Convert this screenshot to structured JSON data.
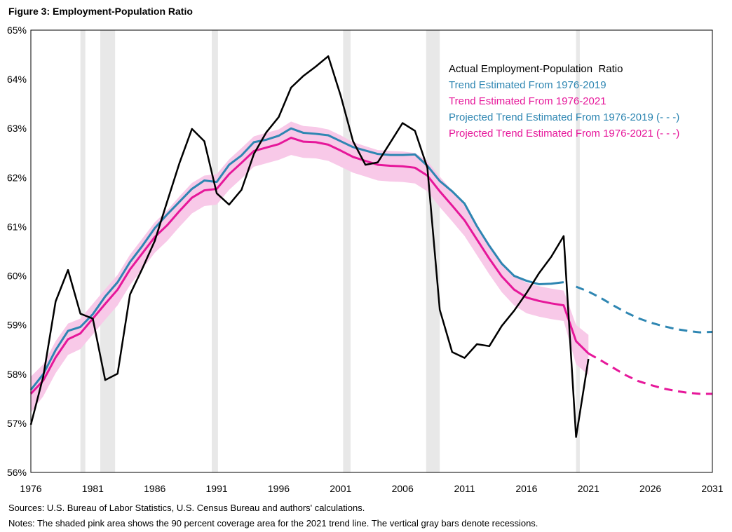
{
  "figure_title": "Figure 3: Employment-Population Ratio",
  "sources": "Sources: U.S. Bureau of Labor Statistics, U.S. Census Bureau and authors' calculations.",
  "notes": "Notes: The shaded pink area shows the 90 percent coverage area for the 2021  trend line. The vertical gray bars denote recessions.",
  "colors": {
    "actual": "#000000",
    "trend2019": "#2e86b2",
    "trend2021": "#e6179a",
    "band": "#f8c9e8",
    "recession": "#e8e8e8"
  },
  "chart_data": {
    "type": "line",
    "title": "Employment-Population Ratio",
    "xlabel": "",
    "ylabel": "",
    "xlim": [
      1976,
      2031
    ],
    "ylim": [
      56,
      65
    ],
    "x_ticks": [
      "1976",
      "1981",
      "1986",
      "1991",
      "1996",
      "2001",
      "2006",
      "2011",
      "2016",
      "2021",
      "2026",
      "2031"
    ],
    "y_ticks": [
      "56%",
      "57%",
      "58%",
      "59%",
      "60%",
      "61%",
      "62%",
      "63%",
      "64%",
      "65%"
    ],
    "legend_position": "top-right",
    "legend": [
      {
        "label": "Actual Employment-Population  Ratio",
        "color": "#000000"
      },
      {
        "label": "Trend Estimated From 1976-2019",
        "color": "#2e86b2"
      },
      {
        "label": "Trend Estimated From 1976-2021",
        "color": "#e6179a"
      },
      {
        "label": "Projected Trend Estimated From 1976-2019 (- - -)",
        "color": "#2e86b2"
      },
      {
        "label": "Projected Trend Estimated From 1976-2021 (- - -)",
        "color": "#e6179a"
      }
    ],
    "recessions": [
      [
        1980.0,
        1980.4
      ],
      [
        1981.6,
        1982.8
      ],
      [
        1990.6,
        1991.1
      ],
      [
        2001.2,
        2001.8
      ],
      [
        2007.9,
        2009.0
      ],
      [
        2020.0,
        2020.3
      ]
    ],
    "series": [
      {
        "key": "actual",
        "style": "solid",
        "x": [
          1976,
          1977,
          1978,
          1979,
          1980,
          1981,
          1982,
          1983,
          1984,
          1985,
          1986,
          1987,
          1988,
          1989,
          1990,
          1991,
          1992,
          1993,
          1994,
          1995,
          1996,
          1997,
          1998,
          1999,
          2000,
          2001,
          2002,
          2003,
          2004,
          2005,
          2006,
          2007,
          2008,
          2009,
          2010,
          2011,
          2012,
          2013,
          2014,
          2015,
          2016,
          2017,
          2018,
          2019,
          2020,
          2021
        ],
        "values": [
          56.97,
          57.95,
          59.48,
          60.12,
          59.23,
          59.13,
          57.88,
          58.01,
          59.62,
          60.15,
          60.71,
          61.51,
          62.3,
          62.99,
          62.74,
          61.68,
          61.45,
          61.75,
          62.48,
          62.92,
          63.23,
          63.83,
          64.07,
          64.26,
          64.47,
          63.67,
          62.74,
          62.26,
          62.31,
          62.71,
          63.11,
          62.95,
          62.2,
          59.31,
          58.45,
          58.33,
          58.61,
          58.57,
          58.98,
          59.29,
          59.65,
          60.05,
          60.39,
          60.81,
          56.72,
          58.31
        ]
      },
      {
        "name": "Trend Estimated From 1976-2019",
        "key": "trend2019",
        "style": "solid",
        "x": [
          1976,
          1977,
          1978,
          1979,
          1980,
          1981,
          1982,
          1983,
          1984,
          1985,
          1986,
          1987,
          1988,
          1989,
          1990,
          1991,
          1992,
          1993,
          1994,
          1995,
          1996,
          1997,
          1998,
          1999,
          2000,
          2001,
          2002,
          2003,
          2004,
          2005,
          2006,
          2007,
          2008,
          2009,
          2010,
          2011,
          2012,
          2013,
          2014,
          2015,
          2016,
          2017,
          2018,
          2019
        ],
        "values": [
          57.68,
          58.0,
          58.49,
          58.88,
          58.96,
          59.22,
          59.58,
          59.87,
          60.28,
          60.61,
          60.97,
          61.25,
          61.51,
          61.77,
          61.94,
          61.91,
          62.26,
          62.45,
          62.72,
          62.77,
          62.85,
          63.0,
          62.91,
          62.89,
          62.86,
          62.74,
          62.62,
          62.55,
          62.48,
          62.46,
          62.46,
          62.47,
          62.24,
          61.93,
          61.72,
          61.47,
          61.01,
          60.61,
          60.25,
          60.0,
          59.9,
          59.83,
          59.84,
          59.87
        ]
      },
      {
        "name": "Trend Estimated From 1976-2021",
        "key": "trend2021",
        "style": "solid",
        "x": [
          1976,
          1977,
          1978,
          1979,
          1980,
          1981,
          1982,
          1983,
          1984,
          1985,
          1986,
          1987,
          1988,
          1989,
          1990,
          1991,
          1992,
          1993,
          1994,
          1995,
          1996,
          1997,
          1998,
          1999,
          2000,
          2001,
          2002,
          2003,
          2004,
          2005,
          2006,
          2007,
          2008,
          2009,
          2010,
          2011,
          2012,
          2013,
          2014,
          2015,
          2016,
          2017,
          2018,
          2019,
          2020,
          2021
        ],
        "values": [
          57.6,
          57.87,
          58.34,
          58.71,
          58.83,
          59.13,
          59.43,
          59.72,
          60.13,
          60.46,
          60.79,
          61.03,
          61.32,
          61.59,
          61.74,
          61.77,
          62.07,
          62.3,
          62.54,
          62.61,
          62.68,
          62.81,
          62.73,
          62.72,
          62.67,
          62.55,
          62.42,
          62.34,
          62.26,
          62.24,
          62.23,
          62.2,
          62.04,
          61.72,
          61.43,
          61.13,
          60.74,
          60.35,
          59.99,
          59.72,
          59.56,
          59.49,
          59.44,
          59.4,
          58.67,
          58.42
        ]
      },
      {
        "name": "Projected Trend Estimated From 1976-2019",
        "key": "trend2019",
        "style": "dashed",
        "x": [
          2020,
          2021,
          2022,
          2023,
          2024,
          2025,
          2026,
          2027,
          2028,
          2029,
          2030,
          2031
        ],
        "values": [
          59.78,
          59.68,
          59.55,
          59.4,
          59.26,
          59.14,
          59.05,
          58.98,
          58.92,
          58.88,
          58.85,
          58.86
        ]
      },
      {
        "name": "Projected Trend Estimated From 1976-2021",
        "key": "trend2021",
        "style": "dashed",
        "x": [
          2021,
          2022,
          2023,
          2024,
          2025,
          2026,
          2027,
          2028,
          2029,
          2030,
          2031
        ],
        "values": [
          58.42,
          58.28,
          58.13,
          57.98,
          57.86,
          57.78,
          57.71,
          57.66,
          57.62,
          57.6,
          57.6
        ]
      }
    ],
    "band": {
      "key": "band",
      "x": [
        1976,
        1977,
        1978,
        1979,
        1980,
        1981,
        1982,
        1983,
        1984,
        1985,
        1986,
        1987,
        1988,
        1989,
        1990,
        1991,
        1992,
        1993,
        1994,
        1995,
        1996,
        1997,
        1998,
        1999,
        2000,
        2001,
        2002,
        2003,
        2004,
        2005,
        2006,
        2007,
        2008,
        2009,
        2010,
        2011,
        2012,
        2013,
        2014,
        2015,
        2016,
        2017,
        2018,
        2019,
        2020,
        2021
      ],
      "upper": [
        57.95,
        58.2,
        58.67,
        59.03,
        59.13,
        59.43,
        59.73,
        60.02,
        60.43,
        60.76,
        61.09,
        61.33,
        61.62,
        61.89,
        62.04,
        62.07,
        62.37,
        62.6,
        62.84,
        62.91,
        62.98,
        63.14,
        63.05,
        63.03,
        62.98,
        62.86,
        62.72,
        62.64,
        62.56,
        62.54,
        62.53,
        62.5,
        62.34,
        62.02,
        61.73,
        61.43,
        61.04,
        60.65,
        60.29,
        60.02,
        59.86,
        59.79,
        59.74,
        59.7,
        59.0,
        58.8
      ],
      "lower": [
        57.22,
        57.55,
        58.02,
        58.39,
        58.51,
        58.81,
        59.11,
        59.4,
        59.81,
        60.14,
        60.47,
        60.71,
        61.0,
        61.27,
        61.42,
        61.45,
        61.75,
        61.98,
        62.22,
        62.29,
        62.36,
        62.46,
        62.4,
        62.39,
        62.34,
        62.22,
        62.1,
        62.02,
        61.94,
        61.92,
        61.91,
        61.88,
        61.72,
        61.4,
        61.11,
        60.81,
        60.42,
        60.03,
        59.67,
        59.4,
        59.24,
        59.17,
        59.12,
        59.08,
        58.2,
        57.98
      ]
    }
  }
}
